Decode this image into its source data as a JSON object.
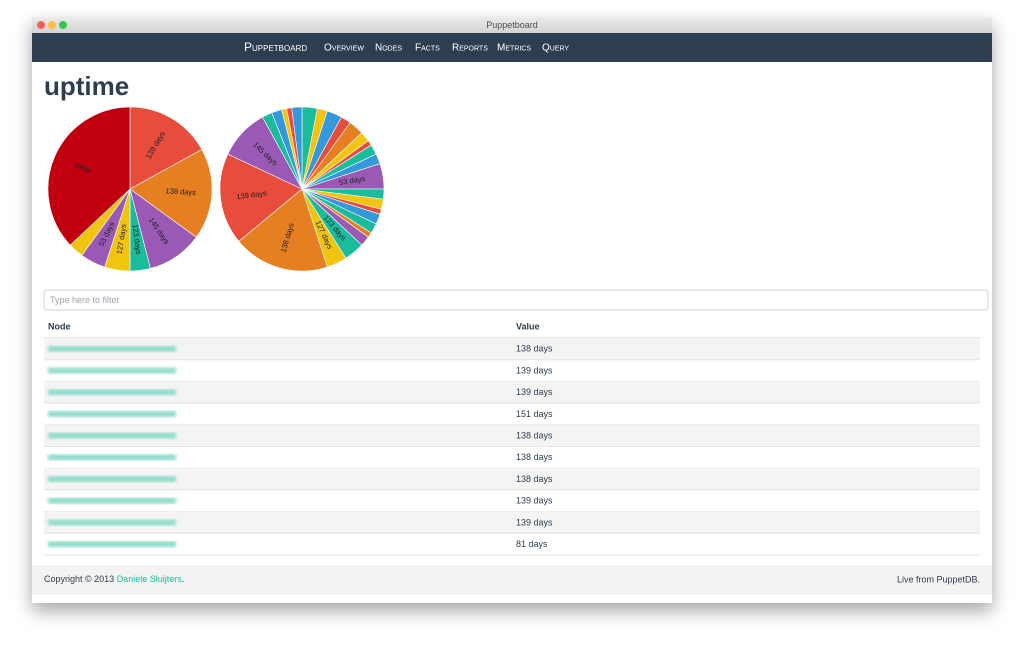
{
  "window_title": "Puppetboard",
  "nav": {
    "brand": "Puppetboard",
    "links": [
      "Overview",
      "Nodes",
      "Facts",
      "Reports",
      "Metrics",
      "Query"
    ]
  },
  "heading": "uptime",
  "charts": [
    {
      "type": "pie",
      "categories": [
        "139 days",
        "138 days",
        "145 days",
        "123 days",
        "127 days",
        "53 days",
        null,
        "other"
      ],
      "values": [
        17,
        18,
        11,
        4,
        5,
        5,
        3,
        37
      ],
      "colors": [
        "#e74c3c",
        "#e67e22",
        "#9b59b6",
        "#1abc9c",
        "#f1c40f",
        "#9b59b6",
        "#f1c40f",
        "#c0000f"
      ]
    },
    {
      "type": "pie",
      "categories": [
        null,
        null,
        null,
        null,
        null,
        null,
        null,
        null,
        null,
        "53 days",
        null,
        null,
        null,
        null,
        null,
        null,
        null,
        "123 days",
        "127 days",
        "138 days",
        "139 days",
        "145 days",
        null,
        null,
        null,
        null,
        null
      ],
      "values": [
        3,
        2,
        3,
        2,
        3,
        2,
        1,
        2,
        2,
        5,
        2,
        2,
        1,
        2,
        2,
        1,
        2,
        4,
        4,
        19,
        18,
        10,
        2,
        2,
        1,
        1,
        2
      ],
      "colors": [
        "#1abc9c",
        "#f1c40f",
        "#3498db",
        "#e74c3c",
        "#e67e22",
        "#f1c40f",
        "#e74c3c",
        "#1abc9c",
        "#3498db",
        "#9b59b6",
        "#1abc9c",
        "#f1c40f",
        "#e74c3c",
        "#3498db",
        "#1abc9c",
        "#e67e22",
        "#9b59b6",
        "#1abc9c",
        "#f1c40f",
        "#e67e22",
        "#e74c3c",
        "#9b59b6",
        "#1abc9c",
        "#3498db",
        "#f1c40f",
        "#e74c3c",
        "#3498db"
      ]
    }
  ],
  "filter_placeholder": "Type here to filter",
  "table": {
    "columns": [
      "Node",
      "Value"
    ],
    "rows": [
      {
        "value": "138 days"
      },
      {
        "value": "139 days"
      },
      {
        "value": "139 days"
      },
      {
        "value": "151 days"
      },
      {
        "value": "138 days"
      },
      {
        "value": "138 days"
      },
      {
        "value": "138 days"
      },
      {
        "value": "139 days"
      },
      {
        "value": "139 days"
      },
      {
        "value": "81 days"
      }
    ]
  },
  "footer": {
    "copyright": "Copyright © 2013",
    "author": "Daniele Sluijters",
    "period": ".",
    "source": "Live from PuppetDB."
  }
}
